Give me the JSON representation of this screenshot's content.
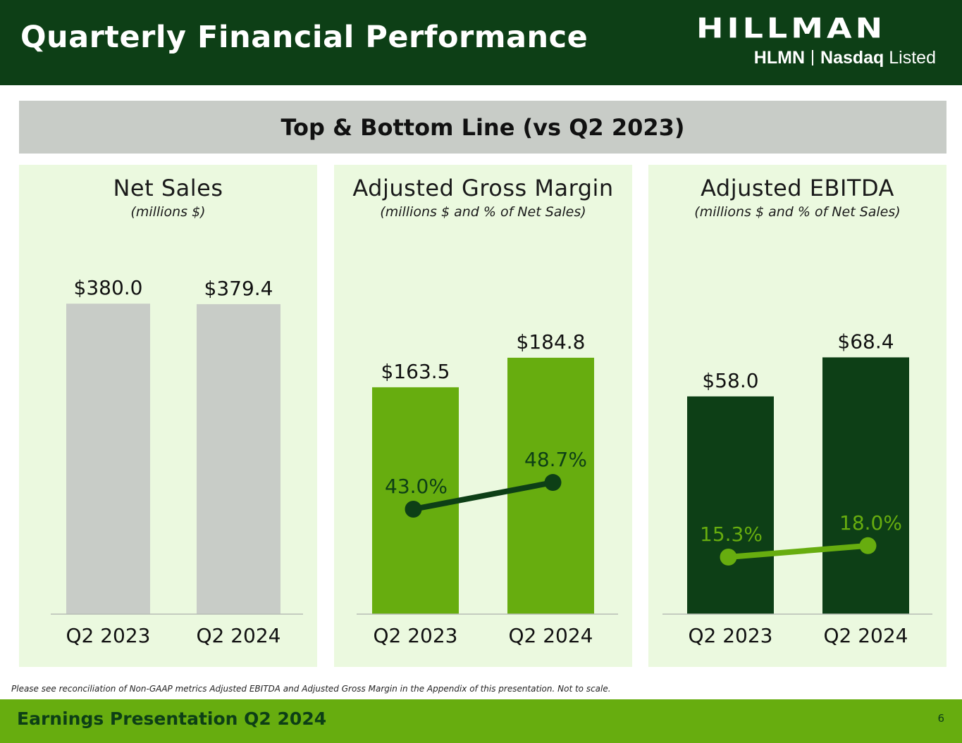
{
  "header": {
    "title": "Quarterly Financial Performance",
    "logo": {
      "wordmark": "HILLMAN",
      "ticker": "HLMN",
      "exchange": "Nasdaq",
      "listed": "Listed"
    }
  },
  "banner": {
    "text": "Top & Bottom Line (vs Q2 2023)"
  },
  "colors": {
    "header_bg": "#0d3f16",
    "footer_bg": "#67ad0f",
    "panel_bg": "#ebf9df",
    "net_sales_bar": "#c8ccc7",
    "gross_margin_bar": "#67ad0f",
    "gross_margin_line": "#0d3f16",
    "ebitda_bar": "#0d3f16",
    "ebitda_line": "#67ad0f"
  },
  "chart_data": [
    {
      "type": "bar",
      "title": "Net Sales",
      "subtitle": "(millions $)",
      "categories": [
        "Q2 2023",
        "Q2 2024"
      ],
      "values": [
        380.0,
        379.4
      ],
      "value_labels": [
        "$380.0",
        "$379.4"
      ]
    },
    {
      "type": "bar",
      "title": "Adjusted Gross Margin",
      "subtitle": "(millions $ and % of Net Sales)",
      "categories": [
        "Q2 2023",
        "Q2 2024"
      ],
      "values": [
        163.5,
        184.8
      ],
      "value_labels": [
        "$163.5",
        "$184.8"
      ],
      "line_series": {
        "values": [
          43.0,
          48.7
        ],
        "labels": [
          "43.0%",
          "48.7%"
        ]
      }
    },
    {
      "type": "bar",
      "title": "Adjusted EBITDA",
      "subtitle": "(millions $ and % of Net Sales)",
      "categories": [
        "Q2 2023",
        "Q2 2024"
      ],
      "values": [
        58.0,
        68.4
      ],
      "value_labels": [
        "$58.0",
        "$68.4"
      ],
      "line_series": {
        "values": [
          15.3,
          18.0
        ],
        "labels": [
          "15.3%",
          "18.0%"
        ]
      }
    }
  ],
  "footnote": "Please see reconciliation of Non-GAAP metrics Adjusted EBITDA and Adjusted Gross Margin in the Appendix of this presentation. Not to scale.",
  "footer": {
    "title": "Earnings Presentation Q2 2024",
    "page": "6"
  }
}
